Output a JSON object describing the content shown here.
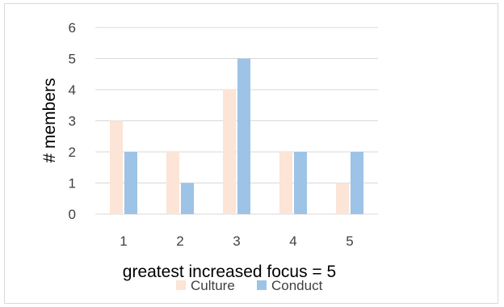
{
  "chart_data": {
    "type": "bar",
    "title": "",
    "xlabel": "greatest increased focus = 5",
    "ylabel": "# members",
    "categories": [
      "1",
      "2",
      "3",
      "4",
      "5"
    ],
    "yticks": [
      "0",
      "1",
      "2",
      "3",
      "4",
      "5",
      "6"
    ],
    "ylim": [
      0,
      6
    ],
    "grid": true,
    "legend_position": "bottom",
    "series": [
      {
        "name": "Culture",
        "color": "#fce4d6",
        "values": [
          3,
          2,
          4,
          2,
          1
        ]
      },
      {
        "name": "Conduct",
        "color": "#9dc3e6",
        "values": [
          2,
          1,
          5,
          2,
          2
        ]
      }
    ]
  }
}
